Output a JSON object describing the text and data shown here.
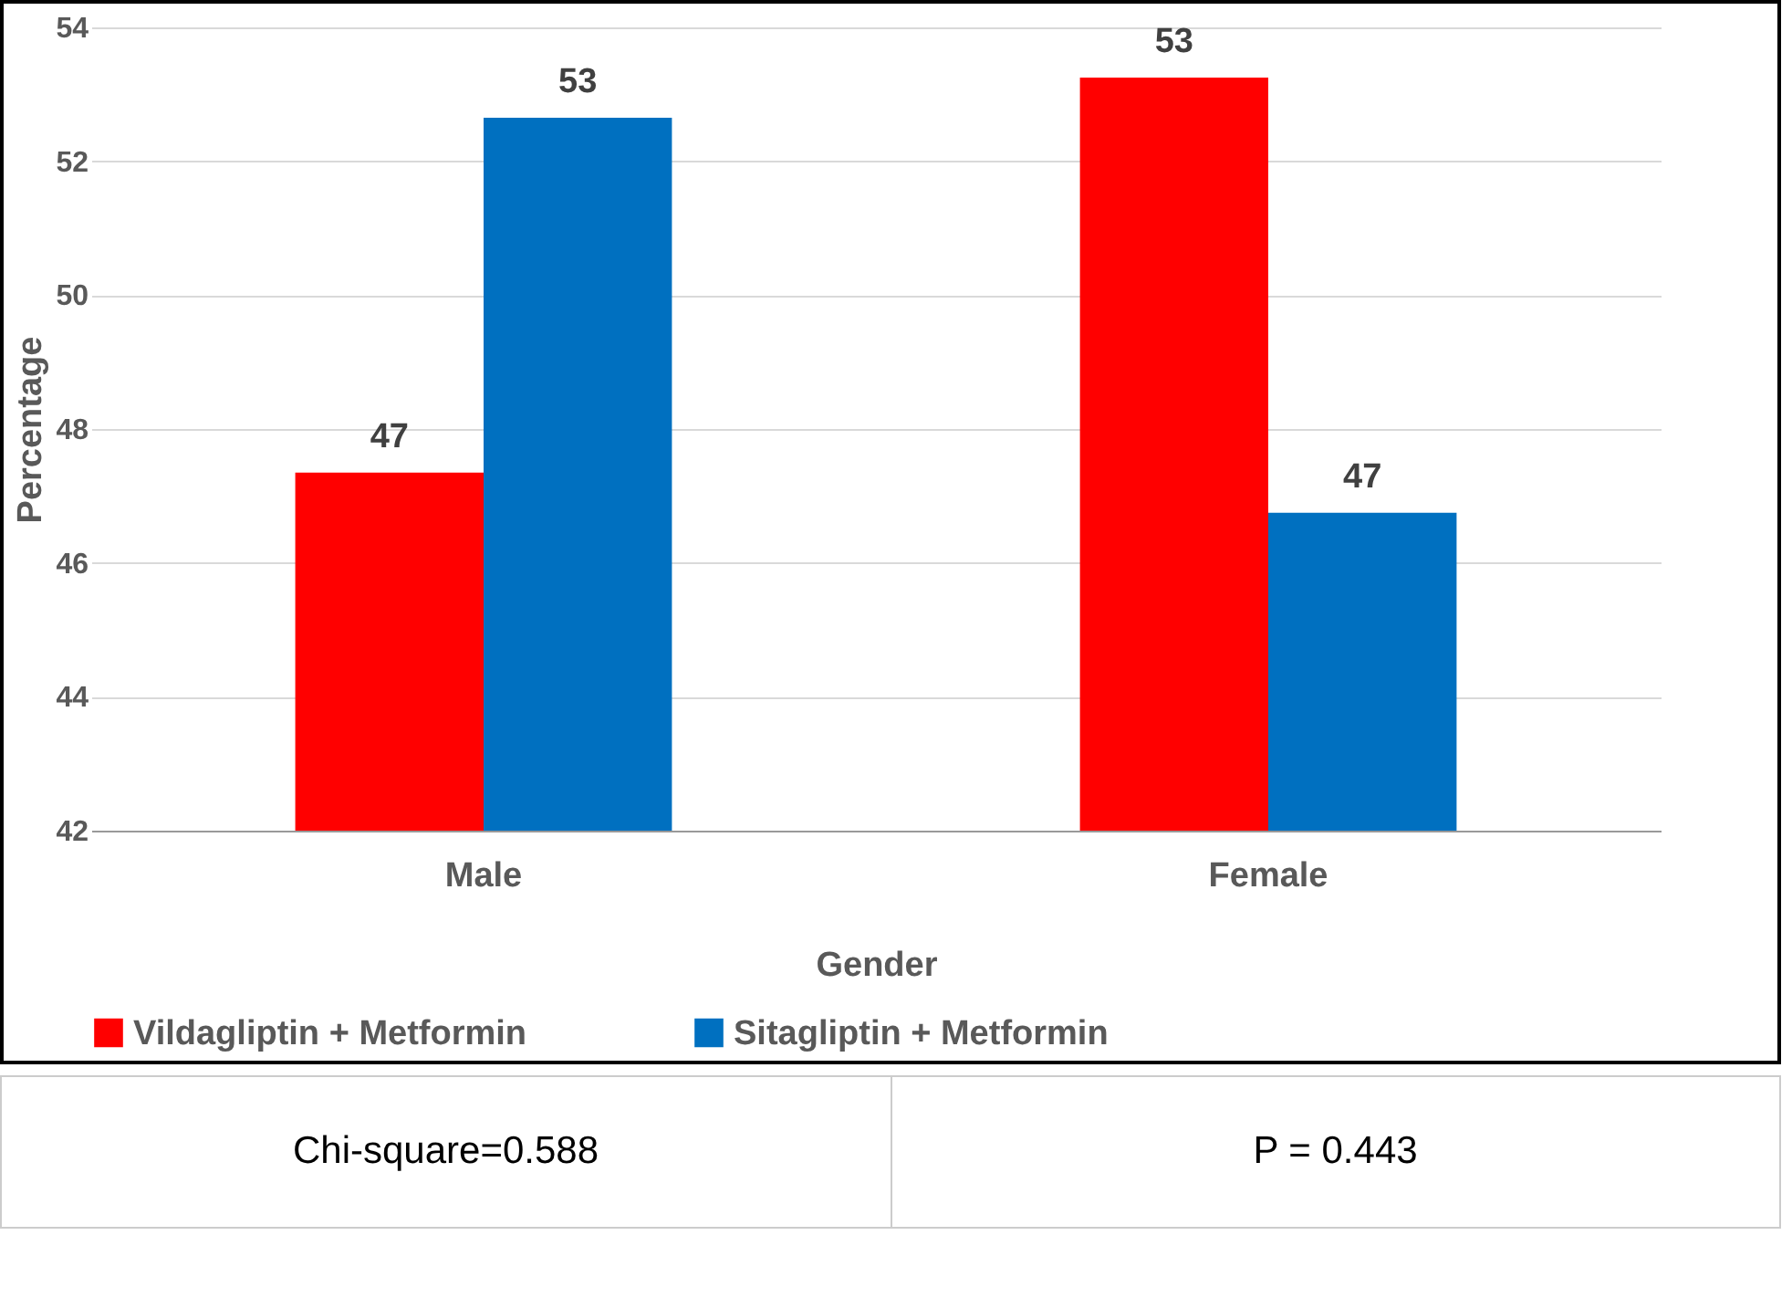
{
  "chart_data": {
    "type": "bar",
    "xlabel": "Gender",
    "ylabel": "Percentage",
    "categories": [
      "Male",
      "Female"
    ],
    "series": [
      {
        "name": "Vildagliptin + Metformin",
        "color": "#ff0000",
        "values": [
          47.35,
          53.25
        ],
        "value_labels": [
          "47",
          "53"
        ]
      },
      {
        "name": "Sitagliptin + Metformin",
        "color": "#0070c0",
        "values": [
          52.65,
          46.75
        ],
        "value_labels": [
          "53",
          "47"
        ]
      }
    ],
    "ylim": [
      42,
      54
    ],
    "yticks": [
      42,
      44,
      46,
      48,
      50,
      52,
      54
    ],
    "grid": "y",
    "legend": "bottom",
    "annotations": [
      "Chi-square=0.588",
      "P = 0.443"
    ]
  }
}
